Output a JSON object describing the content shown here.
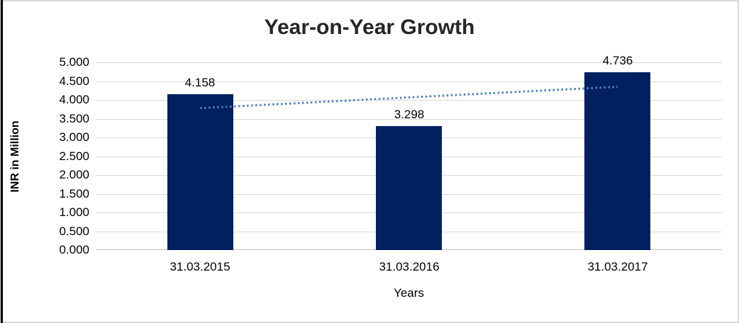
{
  "chart_data": {
    "type": "bar",
    "title": "Year-on-Year Growth",
    "xlabel": "Years",
    "ylabel": "INR in Million",
    "categories": [
      "31.03.2015",
      "31.03.2016",
      "31.03.2017"
    ],
    "values": [
      4.158,
      3.298,
      4.736
    ],
    "data_labels": [
      "4.158",
      "3.298",
      "4.736"
    ],
    "y_ticks": [
      {
        "label": "0.000",
        "value": 0.0
      },
      {
        "label": "0.500",
        "value": 0.5
      },
      {
        "label": "1.000",
        "value": 1.0
      },
      {
        "label": "1.500",
        "value": 1.5
      },
      {
        "label": "2.000",
        "value": 2.0
      },
      {
        "label": "2.500",
        "value": 2.5
      },
      {
        "label": "3.000",
        "value": 3.0
      },
      {
        "label": "3.500",
        "value": 3.5
      },
      {
        "label": "4.000",
        "value": 4.0
      },
      {
        "label": "4.500",
        "value": 4.5
      },
      {
        "label": "5.000",
        "value": 5.0
      }
    ],
    "ylim": [
      0,
      5
    ],
    "grid": true,
    "legend": "none",
    "bar_color": "#002060",
    "grid_color": "#d9d9d9",
    "trendline": {
      "type": "linear",
      "style": "dotted",
      "color": "#4E81BD",
      "start_value": 3.78,
      "end_value": 4.35
    }
  }
}
